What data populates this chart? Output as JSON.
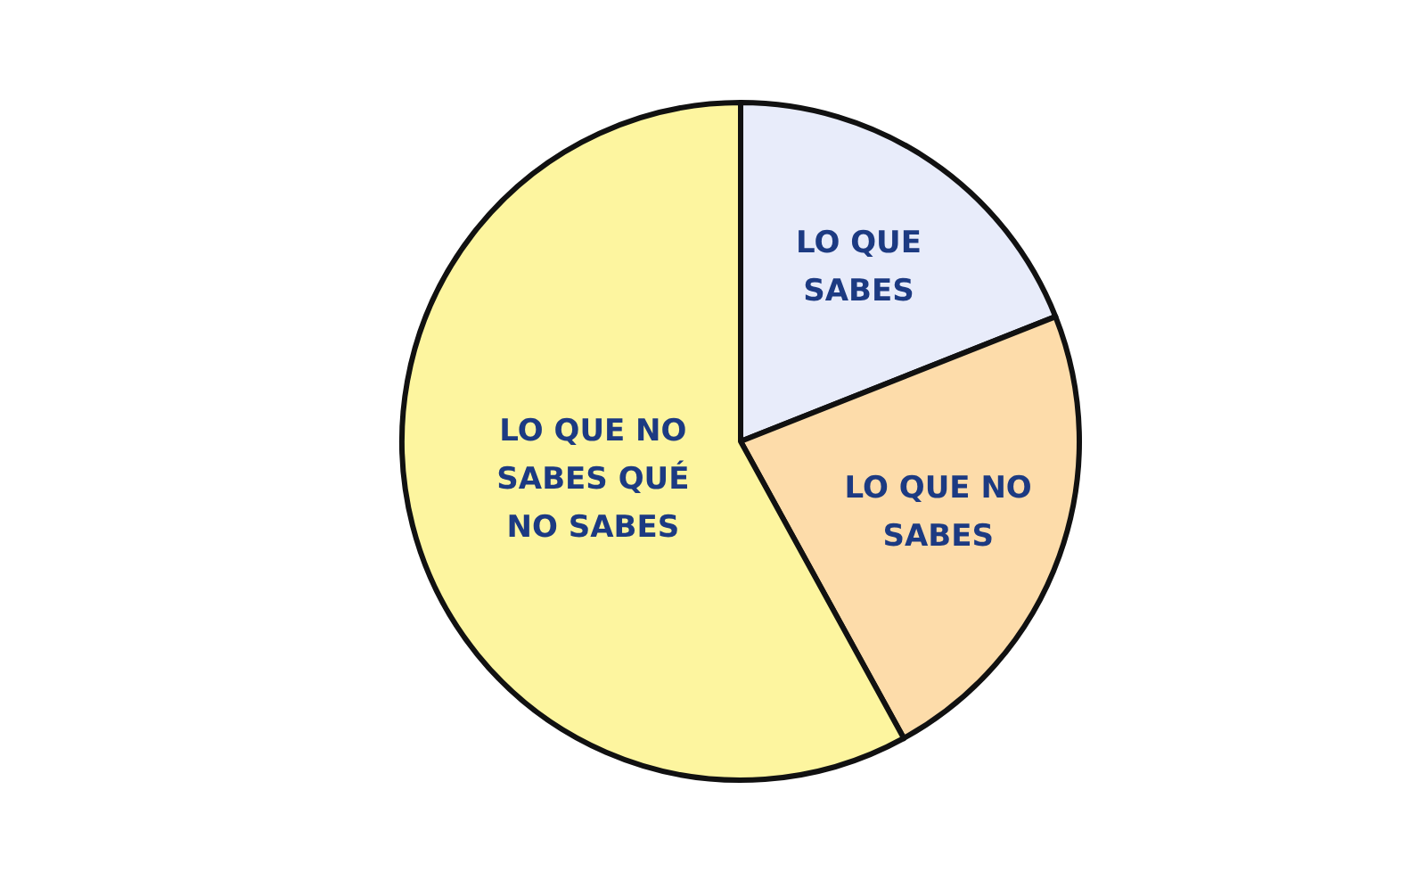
{
  "chart_data": {
    "type": "pie",
    "categories": [
      "LO QUE\nSABES",
      "LO QUE NO\nSABES",
      "LO QUE NO\nSABES QUÉ\nNO SABES"
    ],
    "values": [
      19,
      23,
      58
    ],
    "colors": [
      "#e8ecfa",
      "#fddcaa",
      "#fdf59f"
    ]
  }
}
